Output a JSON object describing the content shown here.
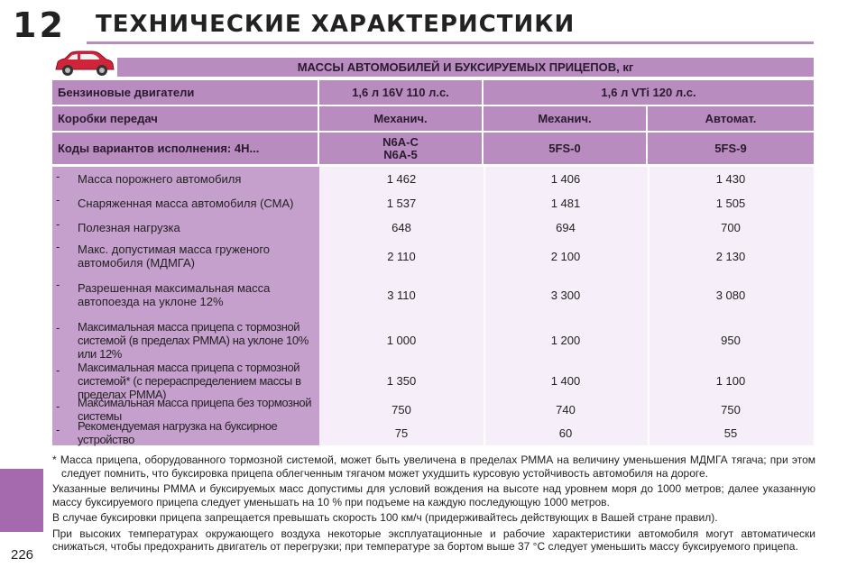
{
  "header": {
    "chapter_number": "12",
    "title": "ТЕХНИЧЕСКИЕ ХАРАКТЕРИСТИКИ"
  },
  "page_number": "226",
  "table": {
    "title": "МАССЫ АВТОМОБИЛЕЙ И БУКСИРУЕМЫХ ПРИЦЕПОВ, кг",
    "engines_label": "Бензиновые двигатели",
    "engines": [
      "1,6 л 16V 110 л.с.",
      "1,6 л VTi 120 л.с."
    ],
    "gearbox_label": "Коробки передач",
    "gearboxes": [
      "Механич.",
      "Механич.",
      "Автомат."
    ],
    "variants_label": "Коды вариантов исполнения: 4H...",
    "variants": [
      "N6A-C\nN6A-5",
      "5FS-0",
      "5FS-9"
    ],
    "rows": [
      {
        "dash": "-",
        "label": "Масса порожнего автомобиля",
        "values": [
          "1 462",
          "1 406",
          "1 430"
        ]
      },
      {
        "dash": "-",
        "label": "Снаряженная масса автомобиля (СМА)",
        "values": [
          "1 537",
          "1 481",
          "1 505"
        ]
      },
      {
        "dash": "-",
        "label": "Полезная нагрузка",
        "values": [
          "648",
          "694",
          "700"
        ]
      },
      {
        "dash": "-",
        "label": "Макс. допустимая масса груженого автомобиля (МДМГА)",
        "values": [
          "2 110",
          "2 100",
          "2 130"
        ]
      },
      {
        "dash": "-",
        "label": "Разрешенная максимальная масса автопоезда на уклоне 12%",
        "values": [
          "3 110",
          "3 300",
          "3 080"
        ]
      },
      {
        "dash": "-",
        "label": "Максимальная масса прицепа с тормозной системой (в пределах РММА) на уклоне 10% или 12%",
        "values": [
          "1 000",
          "1 200",
          "950"
        ]
      },
      {
        "dash": "-",
        "label": "Максимальная масса прицепа с тормозной системой* (с перераспределением массы в пределах РММА)",
        "values": [
          "1 350",
          "1 400",
          "1 100"
        ]
      },
      {
        "dash": "-",
        "label": "Максимальная масса прицепа без тормозной системы",
        "values": [
          "750",
          "740",
          "750"
        ]
      },
      {
        "dash": "-",
        "label": "Рекомендуемая нагрузка на буксирное устройство",
        "values": [
          "75",
          "60",
          "55"
        ]
      }
    ]
  },
  "notes": [
    "* Масса прицепа, оборудованного тормозной системой, может быть увеличена в пределах РММА на величину уменьшения МДМГА тягача; при этом следует помнить, что буксировка прицепа облегченным тягачом может ухудшить курсовую устойчивость автомобиля на дороге.",
    "Указанные величины РММА и буксируемых масс допустимы для условий вождения на высоте над уровнем моря до 1000 метров; далее указанную массу буксируемого прицепа следует уменьшать на 10 % при подъеме на каждую последующую 1000 метров.",
    "В случае буксировки прицепа запрещается превышать скорость 100 км/ч (придерживайтесь действующих в Вашей стране правил).",
    "При высоких температурах окружающего воздуха некоторые эксплуатационные и рабочие характеристики автомобиля могут автоматически снижаться, чтобы предохранить двигатель от перегрузки; при температуре за бортом выше 37 °С следует уменьшить массу буксируемого прицепа."
  ],
  "colors": {
    "accent": "#b98cc0",
    "label_column": "#c6a0cd",
    "value_area": "#f6eef8",
    "side_tab": "#a56aae",
    "car": "#d0243a"
  },
  "icons": {
    "car": "car-icon"
  }
}
